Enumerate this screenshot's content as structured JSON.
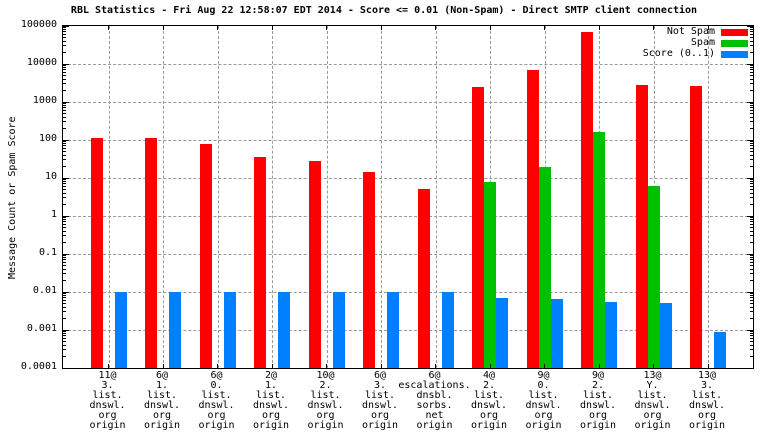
{
  "title": "RBL Statistics - Fri Aug 22 12:58:07 EDT 2014 - Score <= 0.01 (Non-Spam) - Direct SMTP client connection",
  "ylabel": "Message Count or Spam Score",
  "legend_position": "top-right-inside",
  "chart_data": {
    "type": "bar",
    "y_scale": "log",
    "ylim": [
      0.0001,
      100000
    ],
    "grid": true,
    "title": "RBL Statistics - Fri Aug 22 12:58:07 EDT 2014 - Score <= 0.01 (Non-Spam) - Direct SMTP client connection",
    "xlabel": "",
    "ylabel": "Message Count or Spam Score",
    "y_tick_labels": [
      "100000",
      "10000",
      "1000",
      "100",
      "10",
      "1",
      "0.1",
      "0.01",
      "0.001",
      "0.0001"
    ],
    "categories": [
      "11@3.list.dnswl.org origin",
      "6@1.list.dnswl.org origin",
      "6@0.list.dnswl.org origin",
      "2@1.list.dnswl.org origin",
      "10@2.list.dnswl.org origin",
      "6@3.list.dnswl.org origin",
      "6@escalations.dnsbl.sorbs.net origin",
      "4@2.list.dnswl.org origin",
      "9@0.list.dnswl.org origin",
      "9@2.list.dnswl.org origin",
      "13@Y.list.dnswl.org origin",
      "13@3.list.dnswl.org origin"
    ],
    "category_lines": [
      [
        "11@",
        "3.",
        "list.",
        "dnswl.",
        "org",
        "origin"
      ],
      [
        "6@",
        "1.",
        "list.",
        "dnswl.",
        "org",
        "origin"
      ],
      [
        "6@",
        "0.",
        "list.",
        "dnswl.",
        "org",
        "origin"
      ],
      [
        "2@",
        "1.",
        "list.",
        "dnswl.",
        "org",
        "origin"
      ],
      [
        "10@",
        "2.",
        "list.",
        "dnswl.",
        "org",
        "origin"
      ],
      [
        "6@",
        "3.",
        "list.",
        "dnswl.",
        "org",
        "origin"
      ],
      [
        "6@",
        "escalations.",
        "dnsbl.",
        "sorbs.",
        "net",
        "origin"
      ],
      [
        "4@",
        "2.",
        "list.",
        "dnswl.",
        "org",
        "origin"
      ],
      [
        "9@",
        "0.",
        "list.",
        "dnswl.",
        "org",
        "origin"
      ],
      [
        "9@",
        "2.",
        "list.",
        "dnswl.",
        "org",
        "origin"
      ],
      [
        "13@",
        "Y.",
        "list.",
        "dnswl.",
        "org",
        "origin"
      ],
      [
        "13@",
        "3.",
        "list.",
        "dnswl.",
        "org",
        "origin"
      ]
    ],
    "series": [
      {
        "name": "Not Spam",
        "color": "#ff0000",
        "values": [
          110,
          110,
          80,
          35,
          28,
          14,
          5,
          2500,
          7000,
          70000,
          2800,
          2600
        ]
      },
      {
        "name": "Spam",
        "color": "#00c000",
        "values": [
          null,
          null,
          null,
          null,
          null,
          null,
          null,
          8,
          20,
          160,
          6,
          null
        ]
      },
      {
        "name": "Score (0..1)",
        "color": "#0080ff",
        "values": [
          0.01,
          0.01,
          0.01,
          0.01,
          0.01,
          0.01,
          0.01,
          0.007,
          0.0065,
          0.0055,
          0.005,
          0.0009
        ]
      }
    ]
  }
}
